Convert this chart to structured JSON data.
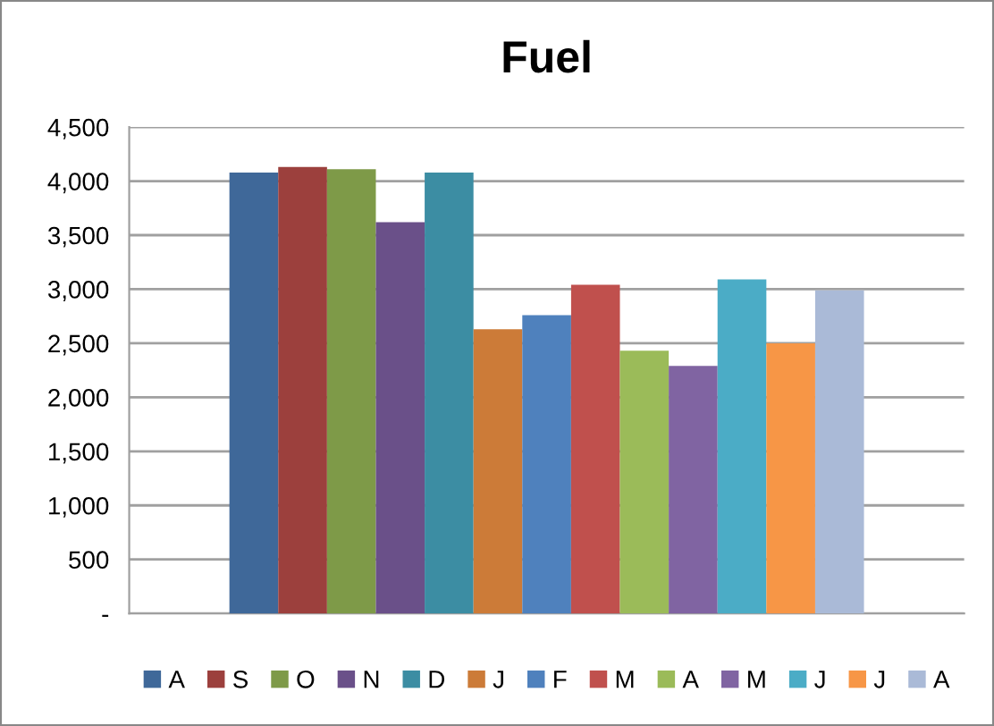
{
  "chart_data": {
    "type": "bar",
    "title": "Fuel",
    "categories": [
      null
    ],
    "series": [
      {
        "name": "A",
        "color": "#3f6899",
        "values": [
          4080
        ]
      },
      {
        "name": "S",
        "color": "#9c403d",
        "values": [
          4130
        ]
      },
      {
        "name": "O",
        "color": "#7e9a48",
        "values": [
          4110
        ]
      },
      {
        "name": "N",
        "color": "#6a5089",
        "values": [
          3620
        ]
      },
      {
        "name": "D",
        "color": "#3c8da3",
        "values": [
          4080
        ]
      },
      {
        "name": "J",
        "color": "#cc7b38",
        "values": [
          2630
        ]
      },
      {
        "name": "F",
        "color": "#4f81bd",
        "values": [
          2760
        ]
      },
      {
        "name": "M",
        "color": "#c0504d",
        "values": [
          3040
        ]
      },
      {
        "name": "A",
        "color": "#9bbb59",
        "values": [
          2430
        ]
      },
      {
        "name": "M",
        "color": "#8064a2",
        "values": [
          2290
        ]
      },
      {
        "name": "J",
        "color": "#4bacc6",
        "values": [
          3090
        ]
      },
      {
        "name": "J",
        "color": "#f79646",
        "values": [
          2500
        ]
      },
      {
        "name": "A",
        "color": "#aabad7",
        "values": [
          2990
        ]
      }
    ],
    "ylim": [
      0,
      4500
    ],
    "yticks": [
      {
        "value": 0,
        "label": "-"
      },
      {
        "value": 500,
        "label": "500"
      },
      {
        "value": 1000,
        "label": "1,000"
      },
      {
        "value": 1500,
        "label": "1,500"
      },
      {
        "value": 2000,
        "label": "2,000"
      },
      {
        "value": 2500,
        "label": "2,500"
      },
      {
        "value": 3000,
        "label": "3,000"
      },
      {
        "value": 3500,
        "label": "3,500"
      },
      {
        "value": 4000,
        "label": "4,000"
      },
      {
        "value": 4500,
        "label": "4,500"
      }
    ],
    "grid": "y",
    "legend": "bottom"
  }
}
